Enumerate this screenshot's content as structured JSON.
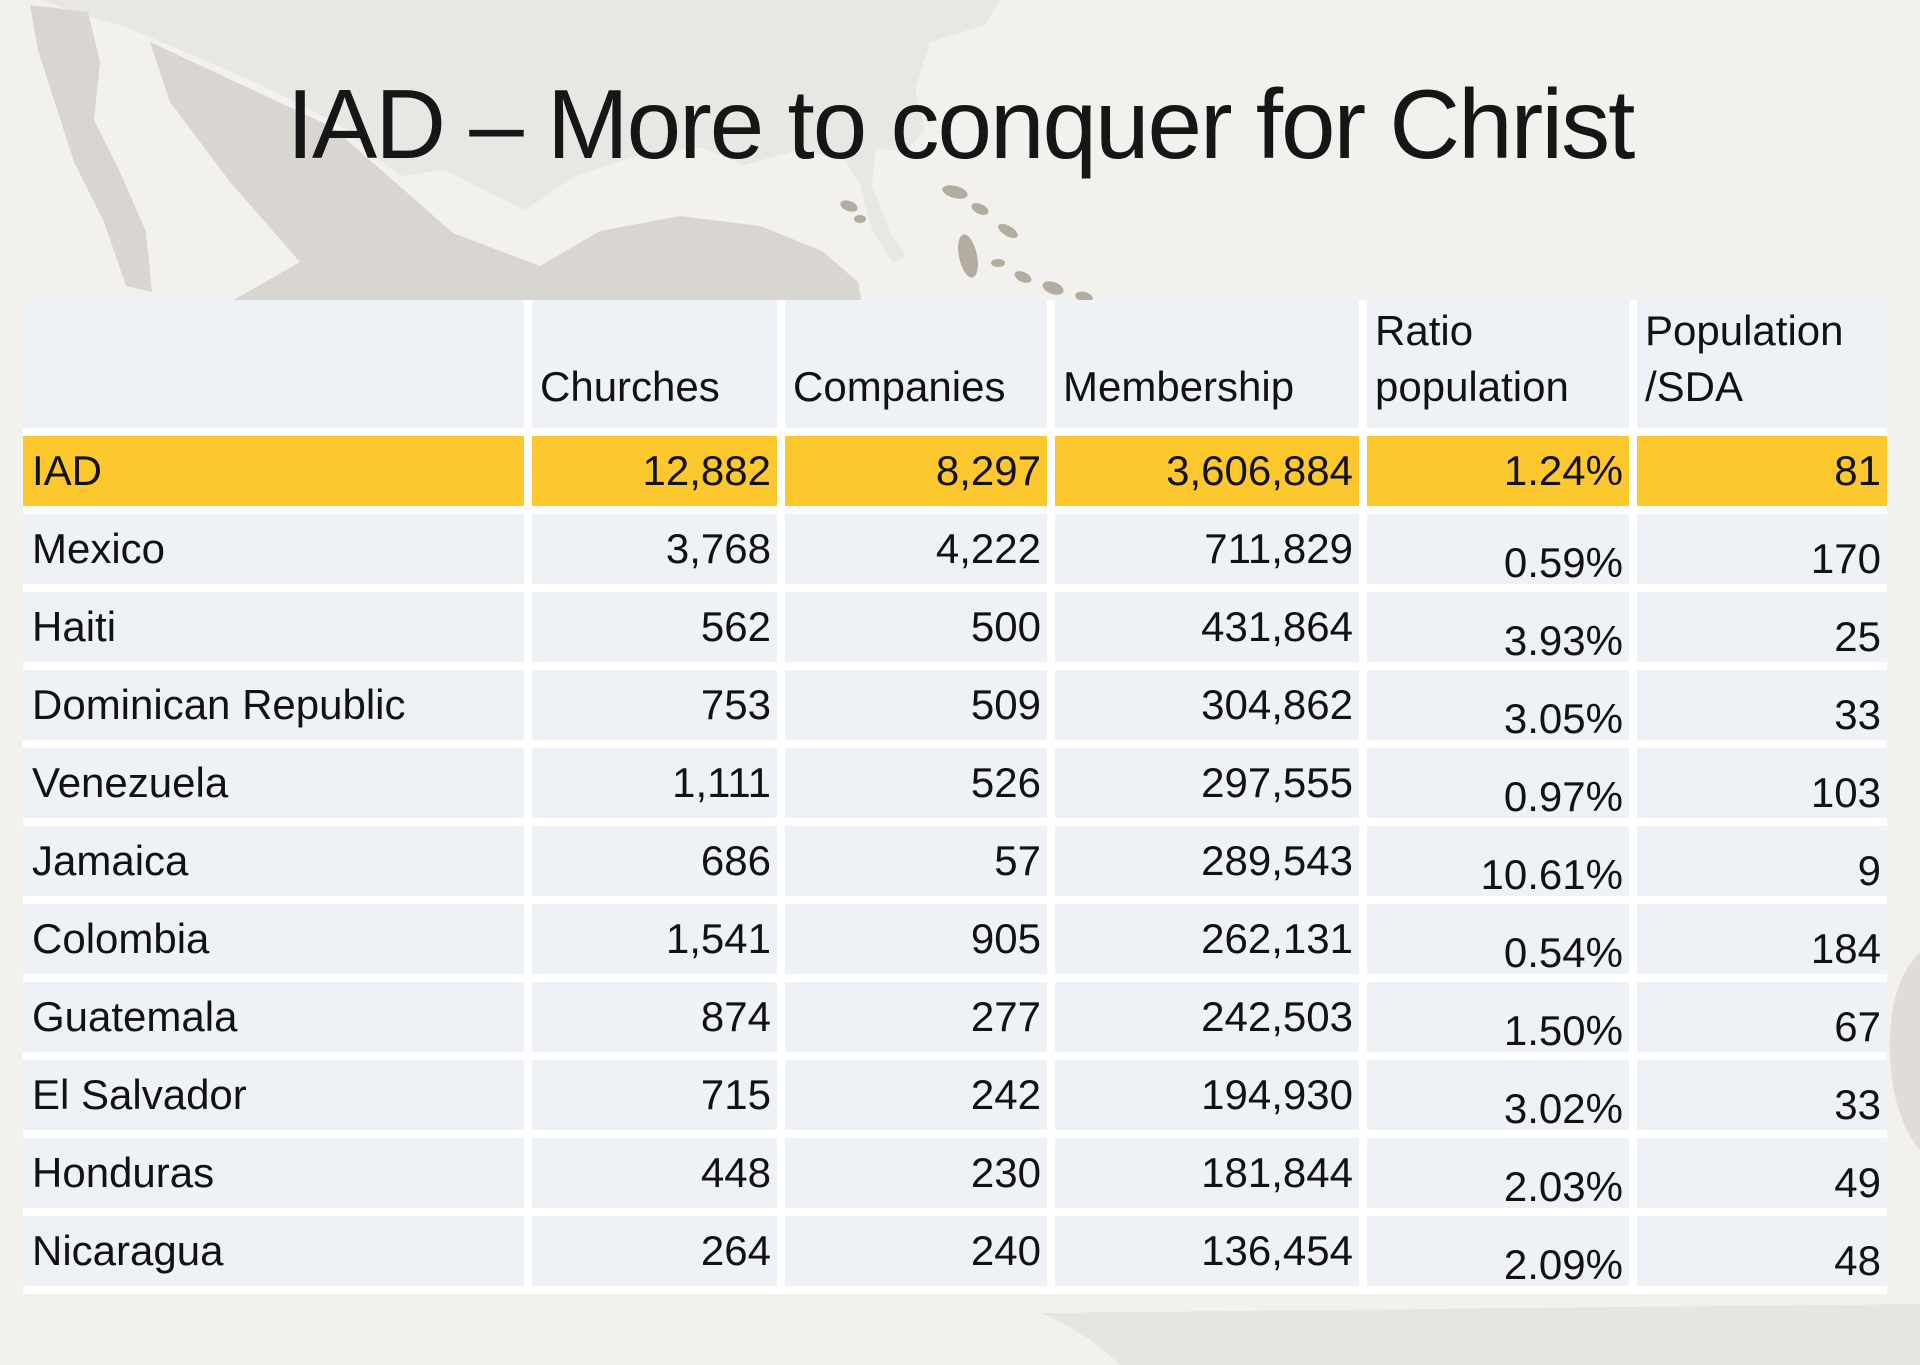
{
  "slide": {
    "title": "IAD – More to conquer for Christ"
  },
  "table": {
    "headers": [
      "",
      "Churches",
      "Companies",
      "Membership",
      "Ratio\npopulation",
      "Population\n/SDA"
    ],
    "rows": [
      {
        "name": "IAD",
        "churches": "12,882",
        "companies": "8,297",
        "membership": "3,606,884",
        "ratio": "1.24%",
        "pop_per_sda": "81",
        "highlight": true
      },
      {
        "name": "Mexico",
        "churches": "3,768",
        "companies": "4,222",
        "membership": "711,829",
        "ratio": "0.59%",
        "pop_per_sda": "170",
        "highlight": false
      },
      {
        "name": "Haiti",
        "churches": "562",
        "companies": "500",
        "membership": "431,864",
        "ratio": "3.93%",
        "pop_per_sda": "25",
        "highlight": false
      },
      {
        "name": "Dominican Republic",
        "churches": "753",
        "companies": "509",
        "membership": "304,862",
        "ratio": "3.05%",
        "pop_per_sda": "33",
        "highlight": false
      },
      {
        "name": "Venezuela",
        "churches": "1,111",
        "companies": "526",
        "membership": "297,555",
        "ratio": "0.97%",
        "pop_per_sda": "103",
        "highlight": false
      },
      {
        "name": "Jamaica",
        "churches": "686",
        "companies": "57",
        "membership": "289,543",
        "ratio": "10.61%",
        "pop_per_sda": "9",
        "highlight": false
      },
      {
        "name": "Colombia",
        "churches": "1,541",
        "companies": "905",
        "membership": "262,131",
        "ratio": "0.54%",
        "pop_per_sda": "184",
        "highlight": false
      },
      {
        "name": "Guatemala",
        "churches": "874",
        "companies": "277",
        "membership": "242,503",
        "ratio": "1.50%",
        "pop_per_sda": "67",
        "highlight": false
      },
      {
        "name": "El Salvador",
        "churches": "715",
        "companies": "242",
        "membership": "194,930",
        "ratio": "3.02%",
        "pop_per_sda": "33",
        "highlight": false
      },
      {
        "name": "Honduras",
        "churches": "448",
        "companies": "230",
        "membership": "181,844",
        "ratio": "2.03%",
        "pop_per_sda": "49",
        "highlight": false
      },
      {
        "name": "Nicaragua",
        "churches": "264",
        "companies": "240",
        "membership": "136,454",
        "ratio": "2.09%",
        "pop_per_sda": "48",
        "highlight": false
      }
    ]
  },
  "colors": {
    "highlight_row": "#fdc72e",
    "cell_background": "#eef1f6",
    "page_background": "#f2f1ee",
    "map_light_shape": "#e8e7e3",
    "map_dark_shape": "#d9d6d1",
    "map_islands": "#b2aca1",
    "text": "#161616"
  }
}
